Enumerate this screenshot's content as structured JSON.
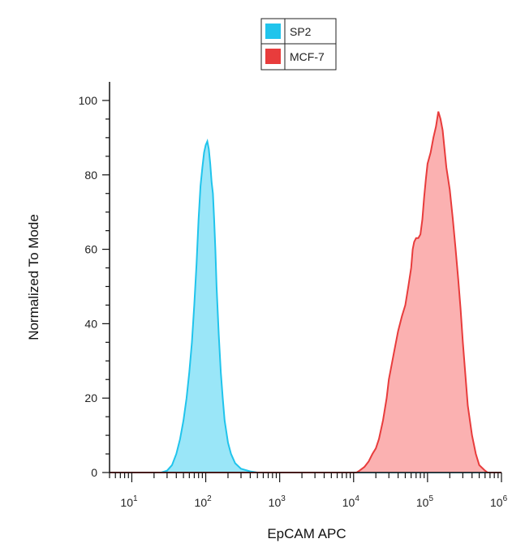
{
  "chart_data": {
    "type": "area",
    "xscale": "log",
    "xlabel": "EpCAM APC",
    "ylabel": "Normalized To Mode",
    "xlim": [
      5,
      1000000
    ],
    "ylim": [
      0,
      105
    ],
    "x_ticks": [
      {
        "base": "10",
        "exp": "1",
        "value": 10
      },
      {
        "base": "10",
        "exp": "2",
        "value": 100
      },
      {
        "base": "10",
        "exp": "3",
        "value": 1000
      },
      {
        "base": "10",
        "exp": "4",
        "value": 10000
      },
      {
        "base": "10",
        "exp": "5",
        "value": 100000
      },
      {
        "base": "10",
        "exp": "6",
        "value": 1000000
      }
    ],
    "y_ticks": [
      0,
      20,
      40,
      60,
      80,
      100
    ],
    "legend": {
      "position": "top-center"
    },
    "series": [
      {
        "name": "SP2",
        "fill": "#8fe3f7",
        "stroke": "#20c4ec",
        "points": [
          [
            5,
            0
          ],
          [
            25,
            0
          ],
          [
            30,
            0.5
          ],
          [
            35,
            2
          ],
          [
            40,
            5
          ],
          [
            45,
            9
          ],
          [
            50,
            14
          ],
          [
            55,
            20
          ],
          [
            60,
            27
          ],
          [
            65,
            35
          ],
          [
            70,
            45
          ],
          [
            75,
            56
          ],
          [
            80,
            68
          ],
          [
            85,
            77
          ],
          [
            90,
            82
          ],
          [
            95,
            86
          ],
          [
            100,
            88
          ],
          [
            105,
            89
          ],
          [
            110,
            87
          ],
          [
            115,
            83
          ],
          [
            120,
            78
          ],
          [
            125,
            75
          ],
          [
            130,
            68
          ],
          [
            135,
            60
          ],
          [
            140,
            50
          ],
          [
            150,
            37
          ],
          [
            160,
            27
          ],
          [
            170,
            20
          ],
          [
            180,
            14
          ],
          [
            200,
            8
          ],
          [
            220,
            5
          ],
          [
            250,
            2.5
          ],
          [
            300,
            1
          ],
          [
            400,
            0.3
          ],
          [
            500,
            0
          ],
          [
            1000000,
            0
          ]
        ]
      },
      {
        "name": "MCF-7",
        "fill": "#fba8a8",
        "stroke": "#e83c3c",
        "points": [
          [
            5,
            0
          ],
          [
            11000,
            0
          ],
          [
            12000,
            0.5
          ],
          [
            14000,
            1.5
          ],
          [
            16000,
            3
          ],
          [
            18000,
            5
          ],
          [
            20000,
            6.5
          ],
          [
            22000,
            9
          ],
          [
            25000,
            14
          ],
          [
            28000,
            20
          ],
          [
            30000,
            25
          ],
          [
            32000,
            28
          ],
          [
            35000,
            32
          ],
          [
            40000,
            38
          ],
          [
            45000,
            42
          ],
          [
            50000,
            45
          ],
          [
            55000,
            50
          ],
          [
            60000,
            55
          ],
          [
            63000,
            60
          ],
          [
            66000,
            62
          ],
          [
            70000,
            63
          ],
          [
            75000,
            63
          ],
          [
            80000,
            64
          ],
          [
            85000,
            68
          ],
          [
            90000,
            74
          ],
          [
            95000,
            79
          ],
          [
            100000,
            83
          ],
          [
            110000,
            86
          ],
          [
            120000,
            90
          ],
          [
            130000,
            93
          ],
          [
            140000,
            97
          ],
          [
            150000,
            95
          ],
          [
            160000,
            92
          ],
          [
            180000,
            82
          ],
          [
            200000,
            76
          ],
          [
            220000,
            68
          ],
          [
            240000,
            60
          ],
          [
            260000,
            52
          ],
          [
            280000,
            44
          ],
          [
            300000,
            35
          ],
          [
            320000,
            28
          ],
          [
            350000,
            18
          ],
          [
            400000,
            10
          ],
          [
            450000,
            5
          ],
          [
            500000,
            2
          ],
          [
            600000,
            0.5
          ],
          [
            650000,
            0
          ],
          [
            1000000,
            0
          ]
        ]
      }
    ]
  }
}
